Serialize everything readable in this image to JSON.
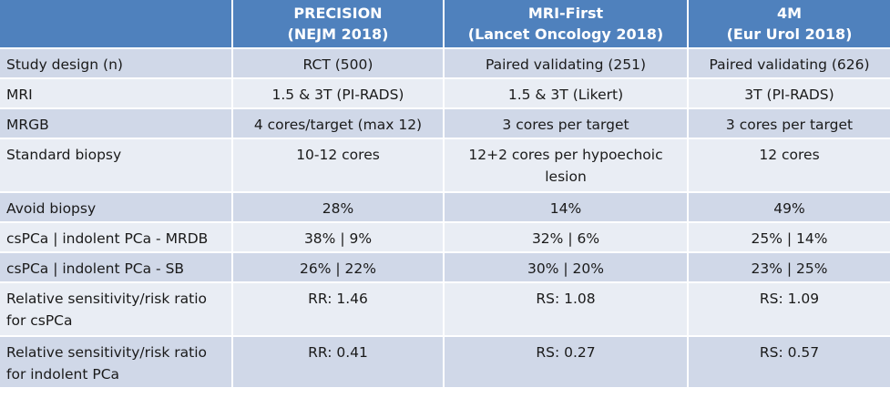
{
  "header": {
    "columns": [
      {
        "line1": "",
        "line2": ""
      },
      {
        "line1": "PRECISION",
        "line2": "(NEJM 2018)"
      },
      {
        "line1": "MRI-First",
        "line2": "(Lancet Oncology 2018)"
      },
      {
        "line1": "4M",
        "line2": "(Eur Urol 2018)"
      }
    ]
  },
  "rows": [
    {
      "label": [
        "Study design (n)"
      ],
      "v1": [
        "RCT (500)"
      ],
      "v2": [
        "Paired validating (251)"
      ],
      "v3": [
        "Paired validating (626)"
      ]
    },
    {
      "label": [
        "MRI"
      ],
      "v1": [
        "1.5 & 3T (PI-RADS)"
      ],
      "v2": [
        "1.5 & 3T (Likert)"
      ],
      "v3": [
        "3T (PI-RADS)"
      ]
    },
    {
      "label": [
        "MRGB"
      ],
      "v1": [
        "4 cores/target (max 12)"
      ],
      "v2": [
        "3 cores per target"
      ],
      "v3": [
        "3 cores per target"
      ]
    },
    {
      "label": [
        "Standard biopsy"
      ],
      "v1": [
        "10-12 cores"
      ],
      "v2": [
        "12+2 cores per hypoechoic",
        "lesion"
      ],
      "v3": [
        "12 cores"
      ]
    },
    {
      "label": [
        "Avoid biopsy"
      ],
      "v1": [
        "28%"
      ],
      "v2": [
        "14%"
      ],
      "v3": [
        "49%"
      ]
    },
    {
      "label": [
        "csPCa | indolent PCa - MRDB"
      ],
      "v1": [
        "38% | 9%"
      ],
      "v2": [
        "32% | 6%"
      ],
      "v3": [
        "25% | 14%"
      ]
    },
    {
      "label": [
        "csPCa | indolent PCa - SB"
      ],
      "v1": [
        "26% | 22%"
      ],
      "v2": [
        "30% | 20%"
      ],
      "v3": [
        "23% | 25%"
      ]
    },
    {
      "label": [
        "Relative sensitivity/risk ratio",
        "for csPCa"
      ],
      "v1": [
        "RR: 1.46"
      ],
      "v2": [
        "RS: 1.08"
      ],
      "v3": [
        "RS: 1.09"
      ]
    },
    {
      "label": [
        "Relative sensitivity/risk ratio",
        "for indolent PCa"
      ],
      "v1": [
        "RR: 0.41"
      ],
      "v2": [
        "RS: 0.27"
      ],
      "v3": [
        "RS: 0.57"
      ]
    }
  ]
}
